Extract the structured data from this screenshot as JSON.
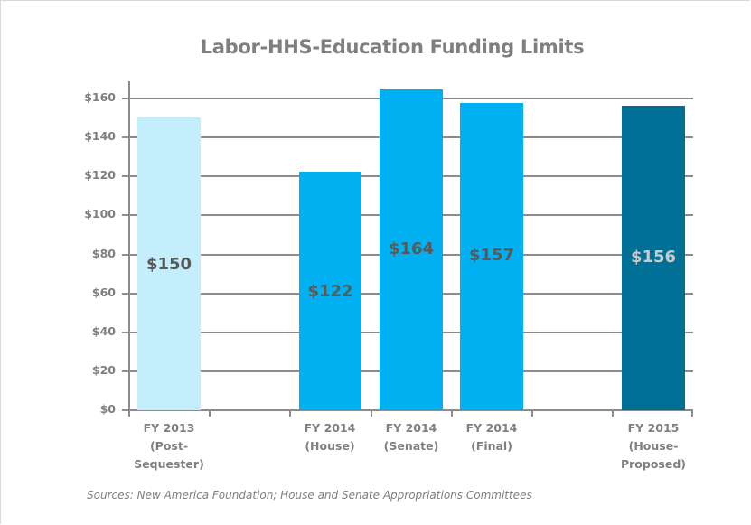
{
  "chart_data": {
    "type": "bar",
    "title": "Labor-HHS-Education Funding Limits",
    "xlabel": "",
    "ylabel": "",
    "ylim": [
      0,
      160
    ],
    "yticks": [
      "$0",
      "$20",
      "$40",
      "$60",
      "$80",
      "$100",
      "$120",
      "$140",
      "$160"
    ],
    "grid": true,
    "legend": null,
    "categories": [
      "FY 2013 (Post-Sequester)",
      "",
      "FY 2014 (House)",
      "FY 2014 (Senate)",
      "FY 2014 (Final)",
      "",
      "FY 2015 (House-Proposed)"
    ],
    "values": [
      150,
      null,
      122,
      164,
      157,
      null,
      156
    ],
    "data_labels": [
      "$150",
      "",
      "$122",
      "$164",
      "$157",
      "",
      "$156"
    ],
    "bar_colors": [
      "#c5eefd",
      null,
      "#00b0f0",
      "#00b0f0",
      "#00b0f0",
      null,
      "#006f95"
    ],
    "source": "Sources: New America Foundation; House and Senate Appropriations Committees"
  },
  "title": "Labor-HHS-Education Funding Limits",
  "y_axis": {
    "labels": [
      "$0",
      "$20",
      "$40",
      "$60",
      "$80",
      "$100",
      "$120",
      "$140",
      "$160"
    ]
  },
  "bars": [
    {
      "value": 150,
      "label": "$150",
      "color": "#c5eefd",
      "label_color": "#595959",
      "x_line1": "FY 2013",
      "x_line2": "(Post-",
      "x_line3": "Sequester)"
    },
    {
      "value": 122,
      "label": "$122",
      "color": "#00b0f0",
      "label_color": "#595959",
      "x_line1": "FY 2014",
      "x_line2": "(House)",
      "x_line3": ""
    },
    {
      "value": 164,
      "label": "$164",
      "color": "#00b0f0",
      "label_color": "#595959",
      "x_line1": "FY 2014",
      "x_line2": "(Senate)",
      "x_line3": ""
    },
    {
      "value": 157,
      "label": "$157",
      "color": "#00b0f0",
      "label_color": "#595959",
      "x_line1": "FY 2014",
      "x_line2": "(Final)",
      "x_line3": ""
    },
    {
      "value": 156,
      "label": "$156",
      "color": "#006f95",
      "label_color": "#c9c9c9",
      "x_line1": "FY 2015",
      "x_line2": "(House-",
      "x_line3": "Proposed)"
    }
  ],
  "source": "Sources: New America Foundation; House and Senate Appropriations Committees"
}
